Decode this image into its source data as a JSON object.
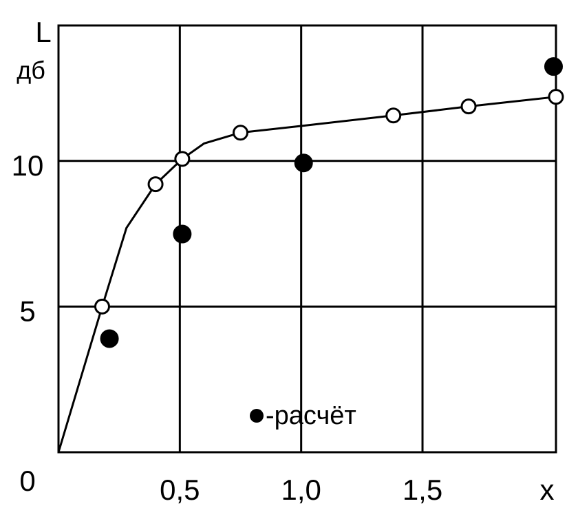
{
  "chart_data": {
    "type": "line",
    "x_label": "x",
    "y_label": "L",
    "y_unit": "дб",
    "xlim": [
      0,
      2.05
    ],
    "ylim": [
      0,
      14.65
    ],
    "xticks": [
      {
        "value": 0.5,
        "label": "0,5"
      },
      {
        "value": 1.0,
        "label": "1,0"
      },
      {
        "value": 1.5,
        "label": "1,5"
      }
    ],
    "yticks": [
      0,
      5,
      10
    ],
    "grid": true,
    "legend": "bottom",
    "series": [
      {
        "color": "#000000",
        "marker": "none",
        "line": true,
        "x": [
          0,
          0.18,
          0.28,
          0.4,
          0.51,
          0.6,
          0.75,
          1.0,
          1.38,
          1.69,
          2.05
        ],
        "values": [
          0,
          5.0,
          7.7,
          9.2,
          10.07,
          10.6,
          10.97,
          11.2,
          11.56,
          11.87,
          12.2
        ]
      },
      {
        "color": "#000000",
        "marker": "open",
        "line": false,
        "x": [
          0.18,
          0.4,
          0.51,
          0.75,
          1.38,
          1.69,
          2.05
        ],
        "values": [
          5.0,
          9.2,
          10.07,
          10.97,
          11.56,
          11.87,
          12.2
        ]
      },
      {
        "name": "-расчёт",
        "color": "#000000",
        "marker": "filled",
        "line": false,
        "x": [
          0.21,
          0.51,
          1.01,
          2.04
        ],
        "values": [
          3.9,
          7.49,
          9.93,
          13.24
        ]
      }
    ]
  }
}
